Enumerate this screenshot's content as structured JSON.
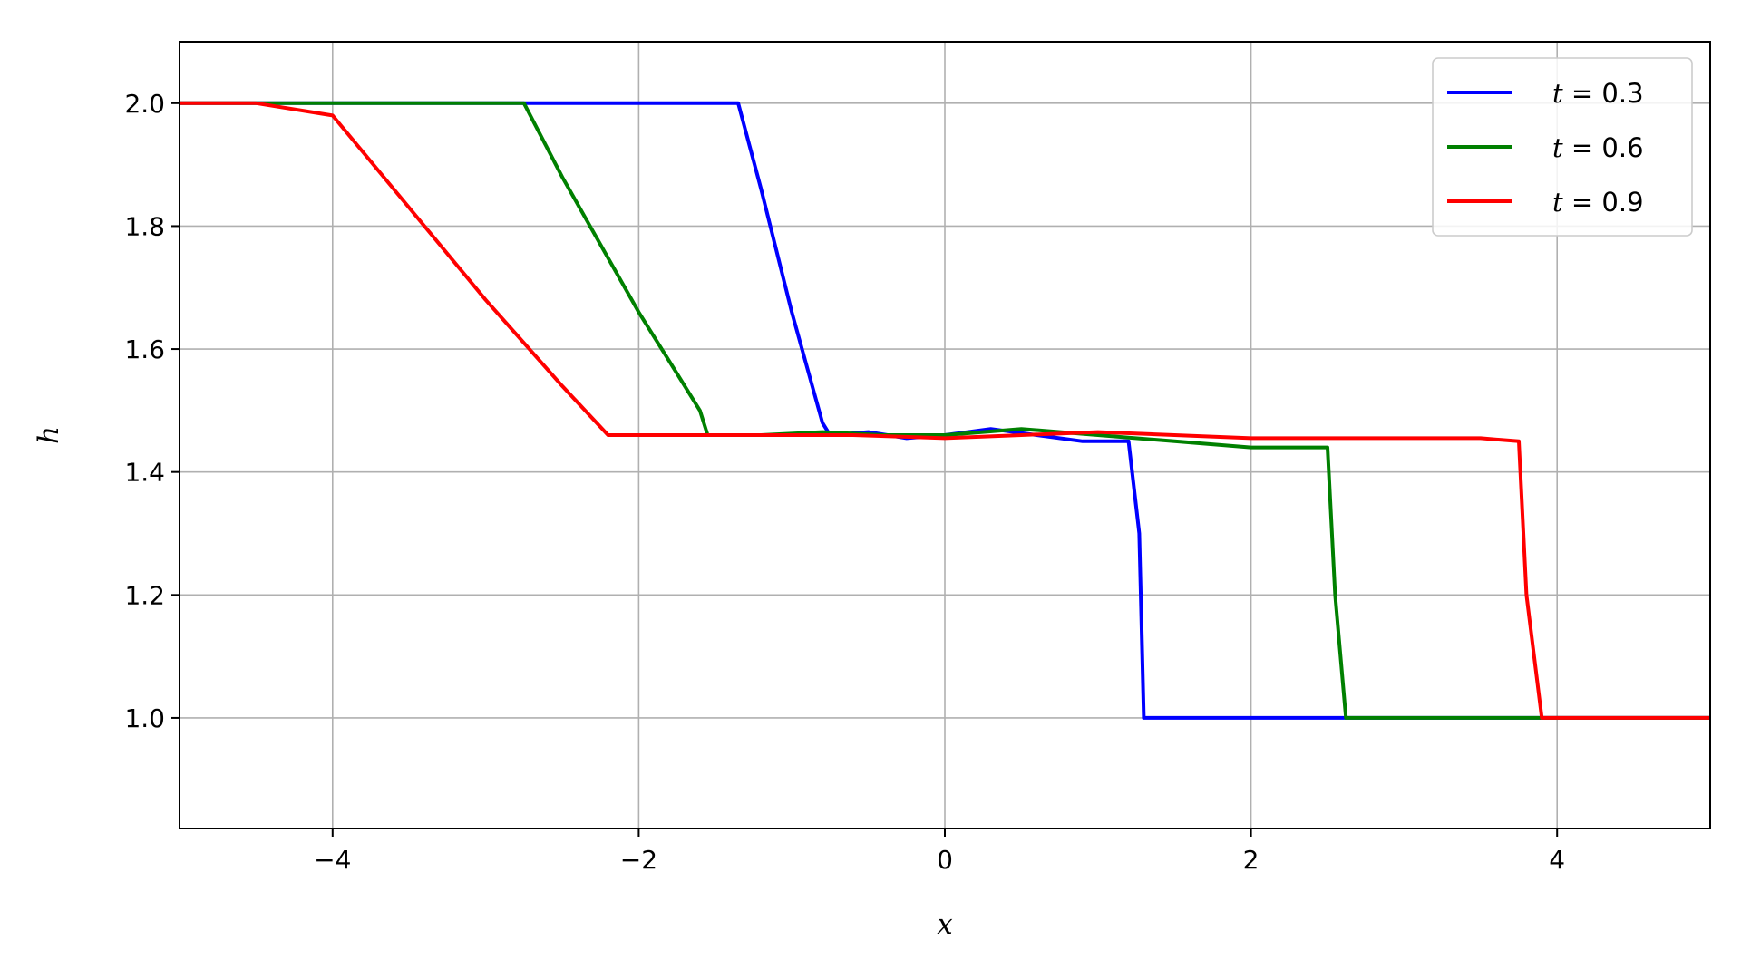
{
  "chart_data": {
    "type": "line",
    "title": "",
    "xlabel": "x",
    "ylabel": "h",
    "xlim": [
      -5,
      5
    ],
    "ylim": [
      0.82,
      2.1
    ],
    "xticks": [
      -4,
      -2,
      0,
      2,
      4
    ],
    "xtick_labels": [
      "−4",
      "−2",
      "0",
      "2",
      "4"
    ],
    "yticks": [
      1.0,
      1.2,
      1.4,
      1.6,
      1.8,
      2.0
    ],
    "ytick_labels": [
      "1.0",
      "1.2",
      "1.4",
      "1.6",
      "1.8",
      "2.0"
    ],
    "grid": true,
    "legend_position": "top-right",
    "series": [
      {
        "name": "t = 0.3",
        "legend_var": "t",
        "legend_value": "0.3",
        "color": "#0000ff",
        "x": [
          -5.0,
          -4.5,
          -4.0,
          -3.5,
          -3.0,
          -2.5,
          -2.0,
          -1.5,
          -1.35,
          -1.2,
          -1.0,
          -0.8,
          -0.75,
          -0.5,
          -0.25,
          0.0,
          0.3,
          0.6,
          0.9,
          1.2,
          1.27,
          1.3,
          1.6,
          2.0,
          2.4,
          2.8,
          3.2,
          3.6,
          4.0,
          4.5,
          5.0
        ],
        "y": [
          2.0,
          2.0,
          2.0,
          2.0,
          2.0,
          2.0,
          2.0,
          2.0,
          2.0,
          1.86,
          1.66,
          1.48,
          1.46,
          1.465,
          1.455,
          1.46,
          1.47,
          1.46,
          1.45,
          1.45,
          1.3,
          1.0,
          1.0,
          1.0,
          1.0,
          1.0,
          1.0,
          1.0,
          1.0,
          1.0,
          1.0
        ]
      },
      {
        "name": "t = 0.6",
        "legend_var": "t",
        "legend_value": "0.6",
        "color": "#008000",
        "x": [
          -5.0,
          -4.5,
          -4.0,
          -3.5,
          -3.0,
          -2.75,
          -2.5,
          -2.0,
          -1.8,
          -1.6,
          -1.55,
          -1.2,
          -0.8,
          -0.4,
          0.0,
          0.5,
          1.0,
          1.5,
          2.0,
          2.5,
          2.55,
          2.62,
          3.0,
          3.5,
          4.0,
          4.5,
          5.0
        ],
        "y": [
          2.0,
          2.0,
          2.0,
          2.0,
          2.0,
          2.0,
          1.88,
          1.66,
          1.58,
          1.5,
          1.46,
          1.46,
          1.465,
          1.46,
          1.46,
          1.47,
          1.46,
          1.45,
          1.44,
          1.44,
          1.2,
          1.0,
          1.0,
          1.0,
          1.0,
          1.0,
          1.0
        ]
      },
      {
        "name": "t = 0.9",
        "legend_var": "t",
        "legend_value": "0.9",
        "color": "#ff0000",
        "x": [
          -5.0,
          -4.5,
          -4.0,
          -3.8,
          -3.5,
          -3.0,
          -2.5,
          -2.2,
          -1.8,
          -1.2,
          -0.6,
          0.0,
          0.5,
          1.0,
          1.5,
          2.0,
          2.5,
          3.0,
          3.5,
          3.75,
          3.8,
          3.9,
          4.2,
          4.5,
          5.0
        ],
        "y": [
          2.0,
          2.0,
          1.98,
          1.92,
          1.83,
          1.68,
          1.54,
          1.46,
          1.46,
          1.46,
          1.46,
          1.455,
          1.46,
          1.465,
          1.46,
          1.455,
          1.455,
          1.455,
          1.455,
          1.45,
          1.2,
          1.0,
          1.0,
          1.0,
          1.0
        ]
      }
    ]
  }
}
